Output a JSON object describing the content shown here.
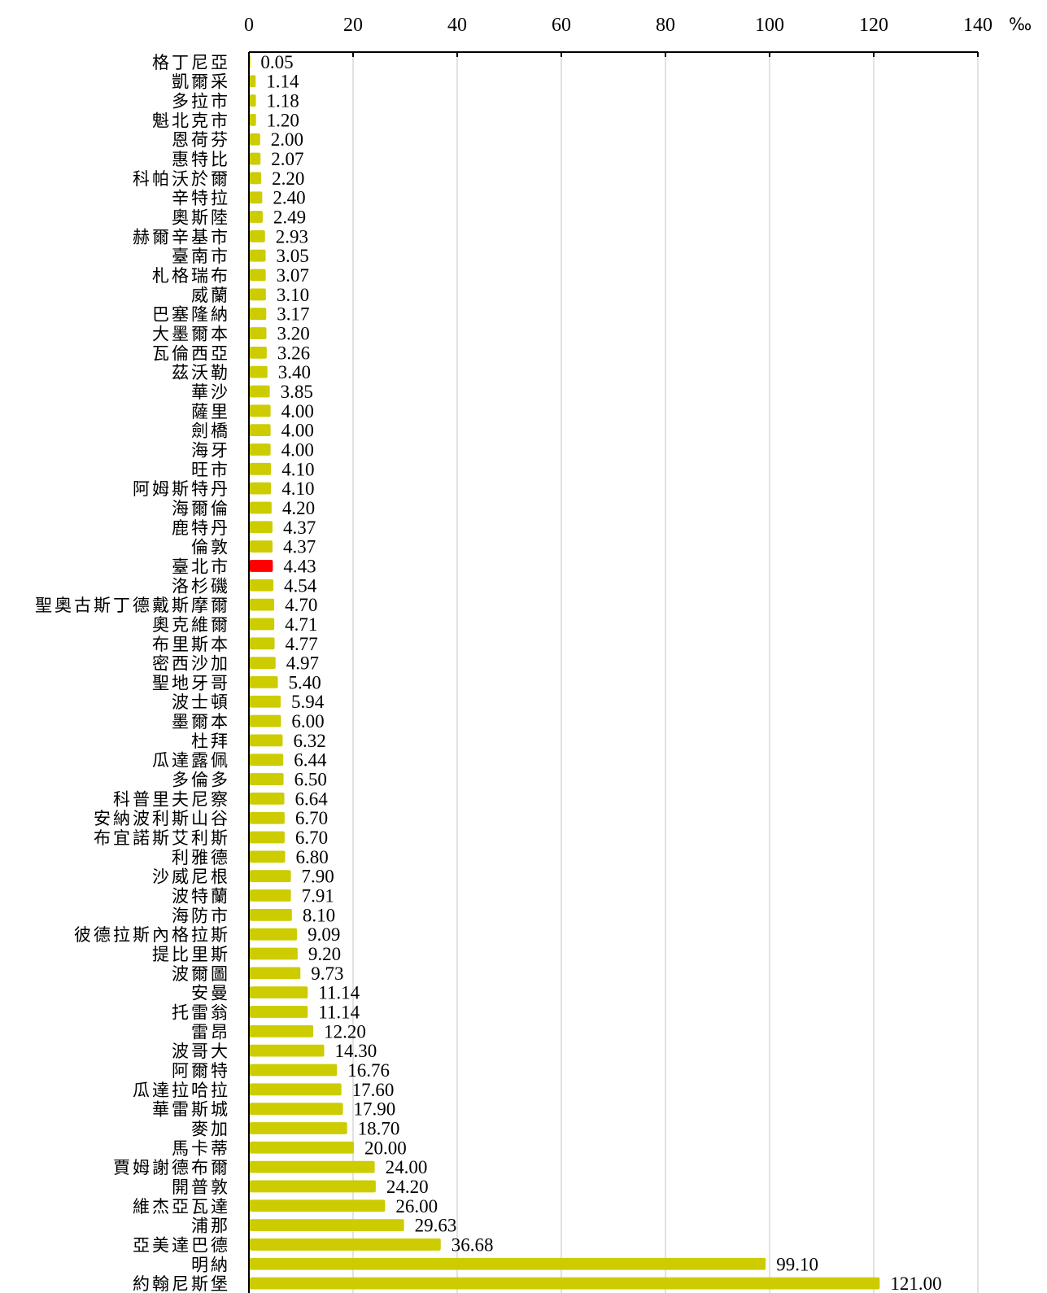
{
  "chart_data": {
    "type": "bar",
    "orientation": "horizontal",
    "unit": "‰",
    "xlim": [
      0,
      140
    ],
    "x_ticks": [
      "0",
      "20",
      "40",
      "60",
      "80",
      "100",
      "120",
      "140"
    ],
    "bar_color": "#cccc00",
    "highlight_color": "#ff0000",
    "highlight_category": "臺北市",
    "grid": "vertical",
    "categories": [
      "格丁尼亞",
      "凱爾采",
      "多拉市",
      "魁北克市",
      "恩荷芬",
      "惠特比",
      "科帕沃於爾",
      "辛特拉",
      "奧斯陸",
      "赫爾辛基市",
      "臺南市",
      "札格瑞布",
      "威蘭",
      "巴塞隆納",
      "大墨爾本",
      "瓦倫西亞",
      "茲沃勒",
      "華沙",
      "薩里",
      "劍橋",
      "海牙",
      "旺市",
      "阿姆斯特丹",
      "海爾倫",
      "鹿特丹",
      "倫敦",
      "臺北市",
      "洛杉磯",
      "聖奧古斯丁德戴斯摩爾",
      "奧克維爾",
      "布里斯本",
      "密西沙加",
      "聖地牙哥",
      "波士頓",
      "墨爾本",
      "杜拜",
      "瓜達露佩",
      "多倫多",
      "科普里夫尼察",
      "安納波利斯山谷",
      "布宜諾斯艾利斯",
      "利雅德",
      "沙威尼根",
      "波特蘭",
      "海防市",
      "彼德拉斯內格拉斯",
      "提比里斯",
      "波爾圖",
      "安曼",
      "托雷翁",
      "雷昂",
      "波哥大",
      "阿爾特",
      "瓜達拉哈拉",
      "華雷斯城",
      "麥加",
      "馬卡蒂",
      "賈姆謝德布爾",
      "開普敦",
      "維杰亞瓦達",
      "浦那",
      "亞美達巴德",
      "明納",
      "約翰尼斯堡"
    ],
    "values": [
      0.05,
      1.14,
      1.18,
      1.2,
      2.0,
      2.07,
      2.2,
      2.4,
      2.49,
      2.93,
      3.05,
      3.07,
      3.1,
      3.17,
      3.2,
      3.26,
      3.4,
      3.85,
      4.0,
      4.0,
      4.0,
      4.1,
      4.1,
      4.2,
      4.37,
      4.37,
      4.43,
      4.54,
      4.7,
      4.71,
      4.77,
      4.97,
      5.4,
      5.94,
      6.0,
      6.32,
      6.44,
      6.5,
      6.64,
      6.7,
      6.7,
      6.8,
      7.9,
      7.91,
      8.1,
      9.09,
      9.2,
      9.73,
      11.14,
      11.14,
      12.2,
      14.3,
      16.76,
      17.6,
      17.9,
      18.7,
      20.0,
      24.0,
      24.2,
      26.0,
      29.63,
      36.68,
      99.1,
      121.0
    ],
    "value_labels": [
      "0.05",
      "1.14",
      "1.18",
      "1.20",
      "2.00",
      "2.07",
      "2.20",
      "2.40",
      "2.49",
      "2.93",
      "3.05",
      "3.07",
      "3.10",
      "3.17",
      "3.20",
      "3.26",
      "3.40",
      "3.85",
      "4.00",
      "4.00",
      "4.00",
      "4.10",
      "4.10",
      "4.20",
      "4.37",
      "4.37",
      "4.43",
      "4.54",
      "4.70",
      "4.71",
      "4.77",
      "4.97",
      "5.40",
      "5.94",
      "6.00",
      "6.32",
      "6.44",
      "6.50",
      "6.64",
      "6.70",
      "6.70",
      "6.80",
      "7.90",
      "7.91",
      "8.10",
      "9.09",
      "9.20",
      "9.73",
      "11.14",
      "11.14",
      "12.20",
      "14.30",
      "16.76",
      "17.60",
      "17.90",
      "18.70",
      "20.00",
      "24.00",
      "24.20",
      "26.00",
      "29.63",
      "36.68",
      "99.10",
      "121.00"
    ]
  }
}
